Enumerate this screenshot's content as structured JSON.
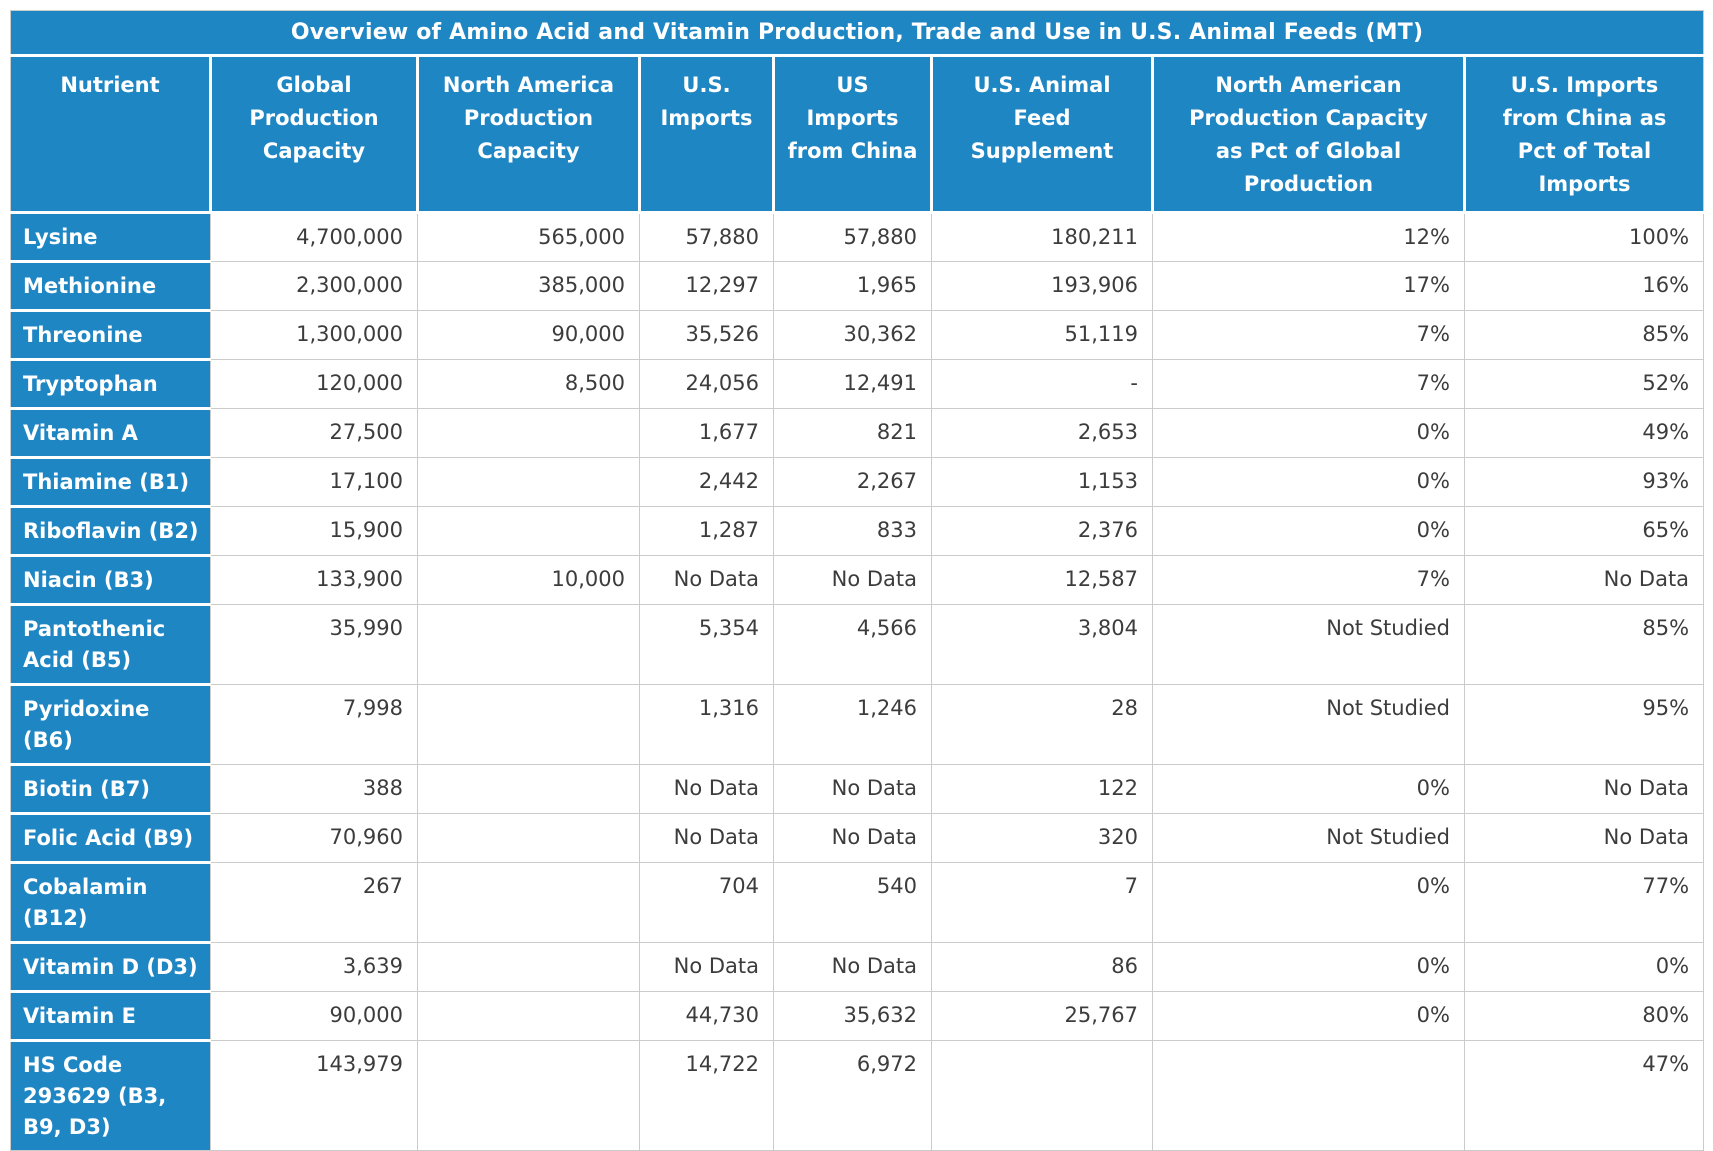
{
  "chart_data": {
    "type": "table",
    "title": "Overview of Amino Acid and Vitamin Production, Trade and Use in U.S. Animal Feeds (MT)",
    "columns": [
      "Nutrient",
      "Global\nProduction\nCapacity",
      "North America\nProduction\nCapacity",
      "U.S.\nImports",
      "US\nImports\nfrom China",
      "U.S. Animal\nFeed\nSupplement",
      "North American\nProduction Capacity\nas Pct of Global\nProduction",
      "U.S. Imports\nfrom China as\nPct of Total\nImports"
    ],
    "rows": [
      {
        "nutrient": "Lysine",
        "values": [
          "4,700,000",
          "565,000",
          "57,880",
          "57,880",
          "180,211",
          "12%",
          "100%"
        ]
      },
      {
        "nutrient": "Methionine",
        "values": [
          "2,300,000",
          "385,000",
          "12,297",
          "1,965",
          "193,906",
          "17%",
          "16%"
        ]
      },
      {
        "nutrient": "Threonine",
        "values": [
          "1,300,000",
          "90,000",
          "35,526",
          "30,362",
          "51,119",
          "7%",
          "85%"
        ]
      },
      {
        "nutrient": "Tryptophan",
        "values": [
          "120,000",
          "8,500",
          "24,056",
          "12,491",
          "-",
          "7%",
          "52%"
        ]
      },
      {
        "nutrient": "Vitamin A",
        "values": [
          "27,500",
          "",
          "1,677",
          "821",
          "2,653",
          "0%",
          "49%"
        ]
      },
      {
        "nutrient": "Thiamine (B1)",
        "values": [
          "17,100",
          "",
          "2,442",
          "2,267",
          "1,153",
          "0%",
          "93%"
        ]
      },
      {
        "nutrient": "Riboflavin (B2)",
        "values": [
          "15,900",
          "",
          "1,287",
          "833",
          "2,376",
          "0%",
          "65%"
        ]
      },
      {
        "nutrient": "Niacin (B3)",
        "values": [
          "133,900",
          "10,000",
          "No Data",
          "No Data",
          "12,587",
          "7%",
          "No Data"
        ]
      },
      {
        "nutrient": "Pantothenic Acid (B5)",
        "values": [
          "35,990",
          "",
          "5,354",
          "4,566",
          "3,804",
          "Not Studied",
          "85%"
        ]
      },
      {
        "nutrient": "Pyridoxine (B6)",
        "values": [
          "7,998",
          "",
          "1,316",
          "1,246",
          "28",
          "Not Studied",
          "95%"
        ]
      },
      {
        "nutrient": "Biotin (B7)",
        "values": [
          "388",
          "",
          "No Data",
          "No Data",
          "122",
          "0%",
          "No Data"
        ]
      },
      {
        "nutrient": "Folic Acid (B9)",
        "values": [
          "70,960",
          "",
          "No Data",
          "No Data",
          "320",
          "Not Studied",
          "No Data"
        ]
      },
      {
        "nutrient": "Cobalamin (B12)",
        "values": [
          "267",
          "",
          "704",
          "540",
          "7",
          "0%",
          "77%"
        ]
      },
      {
        "nutrient": "Vitamin D (D3)",
        "values": [
          "3,639",
          "",
          "No Data",
          "No Data",
          "86",
          "0%",
          "0%"
        ]
      },
      {
        "nutrient": "Vitamin E",
        "values": [
          "90,000",
          "",
          "44,730",
          "35,632",
          "25,767",
          "0%",
          "80%"
        ]
      },
      {
        "nutrient": "HS Code 293629 (B3, B9, D3)",
        "values": [
          "143,979",
          "",
          "14,722",
          "6,972",
          "",
          "",
          "47%"
        ]
      }
    ]
  },
  "colors": {
    "header_blue": "#1F86C4",
    "cell_text": "#3C3C3C",
    "grid_border": "#CBCBCB",
    "header_text": "#FFFFFF"
  }
}
